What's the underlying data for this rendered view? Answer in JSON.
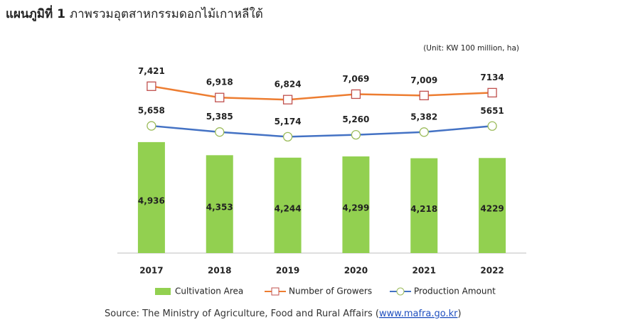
{
  "chart_data": {
    "type": "combo",
    "figure_label": "แผนภูมิที่ 1",
    "title": "ภาพรวมอุตสาหกรรมดอกไม้เกาหลีใต้",
    "unit_note": "(Unit: KW 100 million, ha)",
    "categories": [
      "2017",
      "2018",
      "2019",
      "2020",
      "2021",
      "2022"
    ],
    "ylim": [
      0,
      8000
    ],
    "series": [
      {
        "name": "Cultivation Area",
        "type": "bar",
        "color": "#92d050",
        "values": [
          4936,
          4353,
          4244,
          4299,
          4218,
          4229
        ],
        "value_labels": [
          "4,936",
          "4,353",
          "4,244",
          "4,299",
          "4,218",
          "4229"
        ]
      },
      {
        "name": "Number of Growers",
        "type": "line",
        "marker": "square",
        "color": "#ed7d31",
        "values": [
          7421,
          6918,
          6824,
          7069,
          7009,
          7134
        ],
        "value_labels": [
          "7,421",
          "6,918",
          "6,824",
          "7,069",
          "7,009",
          "7134"
        ]
      },
      {
        "name": "Production Amount",
        "type": "line",
        "marker": "circle",
        "color": "#4472c4",
        "values": [
          5658,
          5385,
          5174,
          5260,
          5382,
          5651
        ],
        "value_labels": [
          "5,658",
          "5,385",
          "5,174",
          "5,260",
          "5,382",
          "5651"
        ]
      }
    ],
    "source": "Source: The Ministry of Agriculture, Food and Rural Affairs (",
    "source_link": "www.mafra.go.kr",
    "source_end": ")"
  }
}
